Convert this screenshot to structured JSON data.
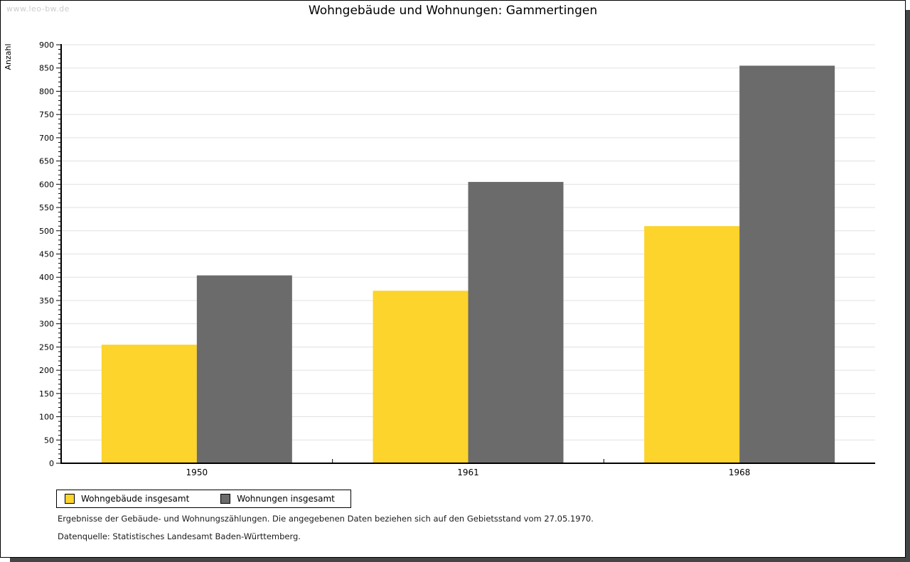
{
  "header": {
    "watermark": "www.leo-bw.de",
    "title": "Wohngebäude und Wohnungen: Gammertingen"
  },
  "chart_data": {
    "type": "bar",
    "title": "Wohngebäude und Wohnungen: Gammertingen",
    "categories": [
      "1950",
      "1961",
      "1968"
    ],
    "series": [
      {
        "name": "Wohngebäude insgesamt",
        "color": "#fcd42b",
        "values": [
          255,
          371,
          510
        ]
      },
      {
        "name": "Wohnungen insgesamt",
        "color": "#6b6b6b",
        "values": [
          404,
          605,
          855
        ]
      }
    ],
    "xlabel": "",
    "ylabel": "Anzahl",
    "ylim": [
      0,
      900
    ],
    "ytick_step": 50,
    "minor_tick_step": 10,
    "grid": true,
    "legend_position": "bottom-left"
  },
  "theme": {
    "grid_color": "#e0e0e0",
    "axis_color": "#000000",
    "shadow_color": "#454545",
    "watermark_color": "#cccccc"
  },
  "footer": {
    "line1": "Ergebnisse der Gebäude- und Wohnungszählungen. Die angegebenen Daten beziehen sich auf den Gebietsstand vom 27.05.1970.",
    "line2": "Datenquelle: Statistisches Landesamt Baden-Württemberg."
  }
}
